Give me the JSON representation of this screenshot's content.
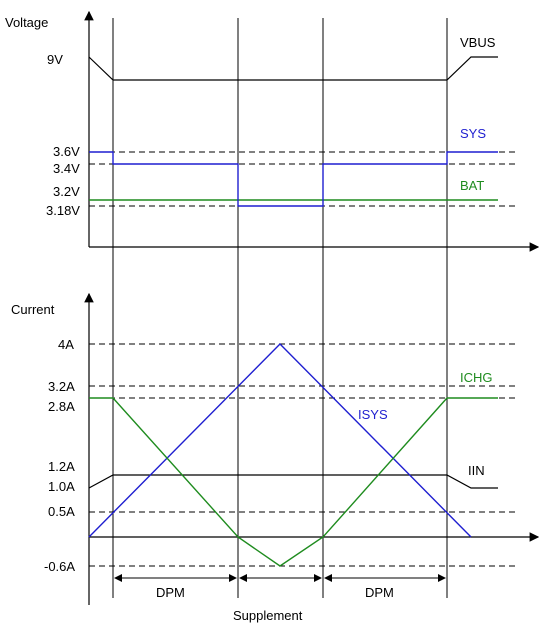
{
  "top_panel": {
    "y_label": "Voltage",
    "ticks": [
      "9V",
      "3.6V",
      "3.4V",
      "3.2V",
      "3.18V"
    ],
    "labels": {
      "vbus": "VBUS",
      "sys": "SYS",
      "bat": "BAT"
    }
  },
  "bottom_panel": {
    "y_label": "Current",
    "ticks": [
      "4A",
      "3.2A",
      "2.8A",
      "1.2A",
      "1.0A",
      "0.5A",
      "-0.6A"
    ],
    "labels": {
      "ichg": "ICHG",
      "isys": "ISYS",
      "iin": "IIN"
    }
  },
  "intervals": [
    "DPM",
    "Supplement",
    "DPM"
  ],
  "colors": {
    "sys": "#1f1fd0",
    "bat": "#1f8c1f",
    "isys": "#1f1fd0",
    "ichg": "#1f8c1f",
    "vbus": "#000000",
    "iin": "#000000"
  }
}
